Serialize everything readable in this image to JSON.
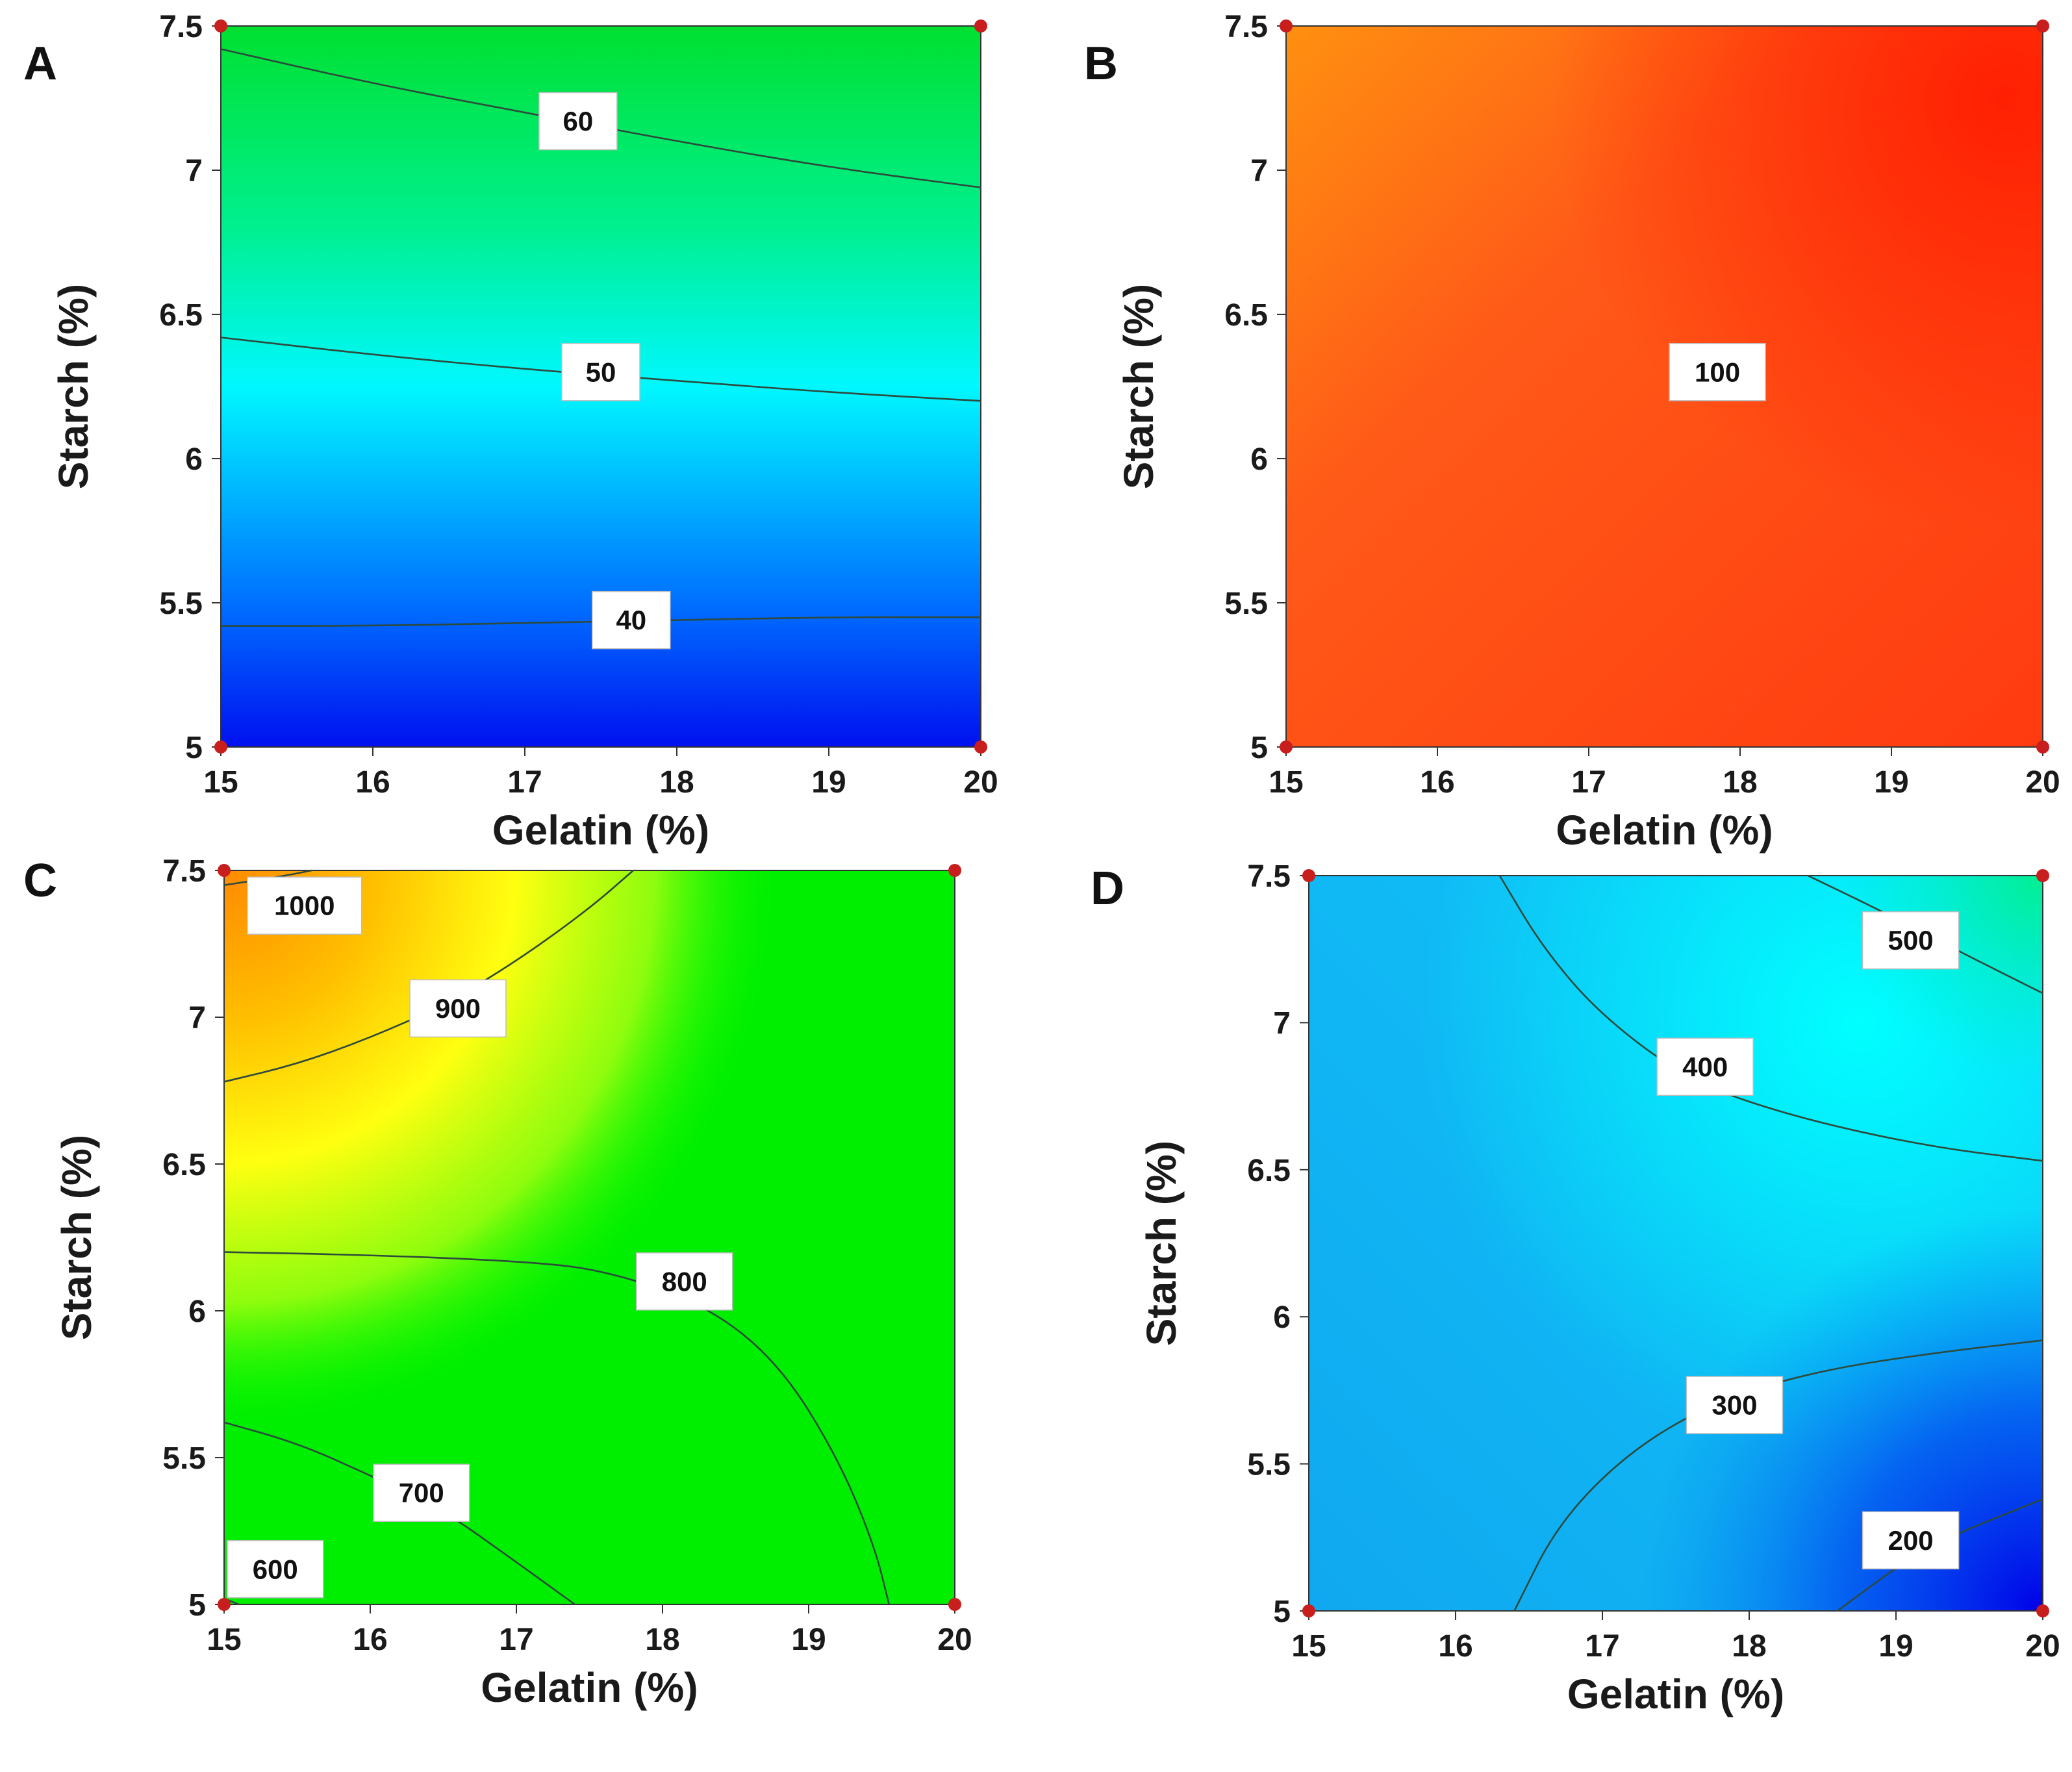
{
  "chart_data": [
    {
      "type": "contour",
      "panel": "A",
      "xlabel": "Gelatin (%)",
      "ylabel": "Starch (%)",
      "xlim": [
        15,
        20
      ],
      "ylim": [
        5,
        7.5
      ],
      "xticks": [
        "15",
        "16",
        "17",
        "18",
        "19",
        "20"
      ],
      "yticks": [
        "5",
        "5.5",
        "6",
        "6.5",
        "7",
        "7.5"
      ],
      "colormap": [
        "#0000ff",
        "#00ffff",
        "#00ff00"
      ],
      "levels": [
        {
          "label": "40",
          "value": 40,
          "points": [
            [
              15,
              5.42
            ],
            [
              16,
              5.42
            ],
            [
              17,
              5.43
            ],
            [
              18,
              5.44
            ],
            [
              19,
              5.45
            ],
            [
              20,
              5.45
            ]
          ],
          "label_at": [
            17.7,
            5.44
          ]
        },
        {
          "label": "50",
          "value": 50,
          "points": [
            [
              15,
              6.42
            ],
            [
              16,
              6.36
            ],
            [
              17,
              6.31
            ],
            [
              18,
              6.27
            ],
            [
              19,
              6.23
            ],
            [
              20,
              6.2
            ]
          ],
          "label_at": [
            17.5,
            6.3
          ]
        },
        {
          "label": "60",
          "value": 60,
          "points": [
            [
              15,
              7.42
            ],
            [
              16,
              7.3
            ],
            [
              17,
              7.2
            ],
            [
              18,
              7.1
            ],
            [
              19,
              7.01
            ],
            [
              20,
              6.94
            ]
          ],
          "label_at": [
            17.35,
            7.17
          ]
        }
      ],
      "design_points": [
        [
          15,
          5
        ],
        [
          20,
          5
        ],
        [
          15,
          7.5
        ],
        [
          20,
          7.5
        ]
      ]
    },
    {
      "type": "contour",
      "panel": "B",
      "xlabel": "Gelatin (%)",
      "ylabel": "Starch (%)",
      "xlim": [
        15,
        20
      ],
      "ylim": [
        5,
        7.5
      ],
      "xticks": [
        "15",
        "16",
        "17",
        "18",
        "19",
        "20"
      ],
      "yticks": [
        "5",
        "5.5",
        "6",
        "6.5",
        "7",
        "7.5"
      ],
      "colormap": [
        "#ff8a10",
        "#ff2a10"
      ],
      "levels": [
        {
          "label": "100",
          "value": 100,
          "points": [],
          "label_at": [
            17.85,
            6.3
          ]
        }
      ],
      "design_points": [
        [
          15,
          5
        ],
        [
          20,
          5
        ],
        [
          15,
          7.5
        ],
        [
          20,
          7.5
        ]
      ]
    },
    {
      "type": "contour",
      "panel": "C",
      "xlabel": "Gelatin (%)",
      "ylabel": "Starch (%)",
      "xlim": [
        15,
        20
      ],
      "ylim": [
        5,
        7.5
      ],
      "xticks": [
        "15",
        "16",
        "17",
        "18",
        "19",
        "20"
      ],
      "yticks": [
        "5",
        "5.5",
        "6",
        "6.5",
        "7",
        "7.5"
      ],
      "colormap": [
        "#00ff00",
        "#ffff00",
        "#ff9900"
      ],
      "levels": [
        {
          "label": "600",
          "value": 600,
          "points": [
            [
              15,
              5.02
            ],
            [
              15.1,
              5.0
            ]
          ],
          "label_at": [
            15.35,
            5.12
          ]
        },
        {
          "label": "700",
          "value": 700,
          "points": [
            [
              15,
              5.62
            ],
            [
              15.5,
              5.55
            ],
            [
              16,
              5.44
            ],
            [
              16.5,
              5.32
            ],
            [
              16.9,
              5.18
            ],
            [
              17.4,
              5.0
            ]
          ],
          "label_at": [
            16.35,
            5.38
          ]
        },
        {
          "label": "800",
          "value": 800,
          "points": [
            [
              15,
              6.2
            ],
            [
              16,
              6.19
            ],
            [
              17,
              6.17
            ],
            [
              17.6,
              6.14
            ],
            [
              18.3,
              6.02
            ],
            [
              18.8,
              5.82
            ],
            [
              19.2,
              5.5
            ],
            [
              19.45,
              5.2
            ],
            [
              19.55,
              5.0
            ]
          ],
          "label_at": [
            18.15,
            6.1
          ]
        },
        {
          "label": "900",
          "value": 900,
          "points": [
            [
              15,
              6.78
            ],
            [
              15.5,
              6.84
            ],
            [
              16,
              6.93
            ],
            [
              16.5,
              7.04
            ],
            [
              17,
              7.19
            ],
            [
              17.5,
              7.37
            ],
            [
              17.8,
              7.5
            ]
          ],
          "label_at": [
            16.6,
            7.03
          ]
        },
        {
          "label": "1000",
          "value": 1000,
          "points": [
            [
              15,
              7.45
            ],
            [
              15.4,
              7.48
            ],
            [
              15.6,
              7.5
            ]
          ],
          "label_at": [
            15.55,
            7.38
          ]
        }
      ],
      "design_points": [
        [
          15,
          5
        ],
        [
          20,
          5
        ],
        [
          15,
          7.5
        ],
        [
          20,
          7.5
        ]
      ]
    },
    {
      "type": "contour",
      "panel": "D",
      "xlabel": "Gelatin (%)",
      "ylabel": "Starch (%)",
      "xlim": [
        15,
        20
      ],
      "ylim": [
        5,
        7.5
      ],
      "xticks": [
        "15",
        "16",
        "17",
        "18",
        "19",
        "20"
      ],
      "yticks": [
        "5",
        "5.5",
        "6",
        "6.5",
        "7",
        "7.5"
      ],
      "colormap": [
        "#0000ff",
        "#00ffff",
        "#00ff88"
      ],
      "levels": [
        {
          "label": "200",
          "value": 200,
          "points": [
            [
              18.6,
              5.0
            ],
            [
              19.2,
              5.22
            ],
            [
              20,
              5.38
            ]
          ],
          "label_at": [
            19.1,
            5.24
          ]
        },
        {
          "label": "300",
          "value": 300,
          "points": [
            [
              16.4,
              5.0
            ],
            [
              16.7,
              5.3
            ],
            [
              17.2,
              5.55
            ],
            [
              17.8,
              5.72
            ],
            [
              18.5,
              5.82
            ],
            [
              19.3,
              5.88
            ],
            [
              20,
              5.92
            ]
          ],
          "label_at": [
            17.9,
            5.7
          ]
        },
        {
          "label": "400",
          "value": 400,
          "points": [
            [
              16.3,
              7.5
            ],
            [
              16.6,
              7.25
            ],
            [
              17,
              7.02
            ],
            [
              17.6,
              6.8
            ],
            [
              18.3,
              6.68
            ],
            [
              19.2,
              6.58
            ],
            [
              20,
              6.53
            ]
          ],
          "label_at": [
            17.7,
            6.85
          ]
        },
        {
          "label": "500",
          "value": 500,
          "points": [
            [
              18.4,
              7.5
            ],
            [
              18.9,
              7.38
            ],
            [
              19.4,
              7.25
            ],
            [
              20,
              7.1
            ]
          ],
          "label_at": [
            19.1,
            7.28
          ]
        }
      ],
      "design_points": [
        [
          15,
          5
        ],
        [
          20,
          5
        ],
        [
          15,
          7.5
        ],
        [
          20,
          7.5
        ]
      ]
    }
  ]
}
